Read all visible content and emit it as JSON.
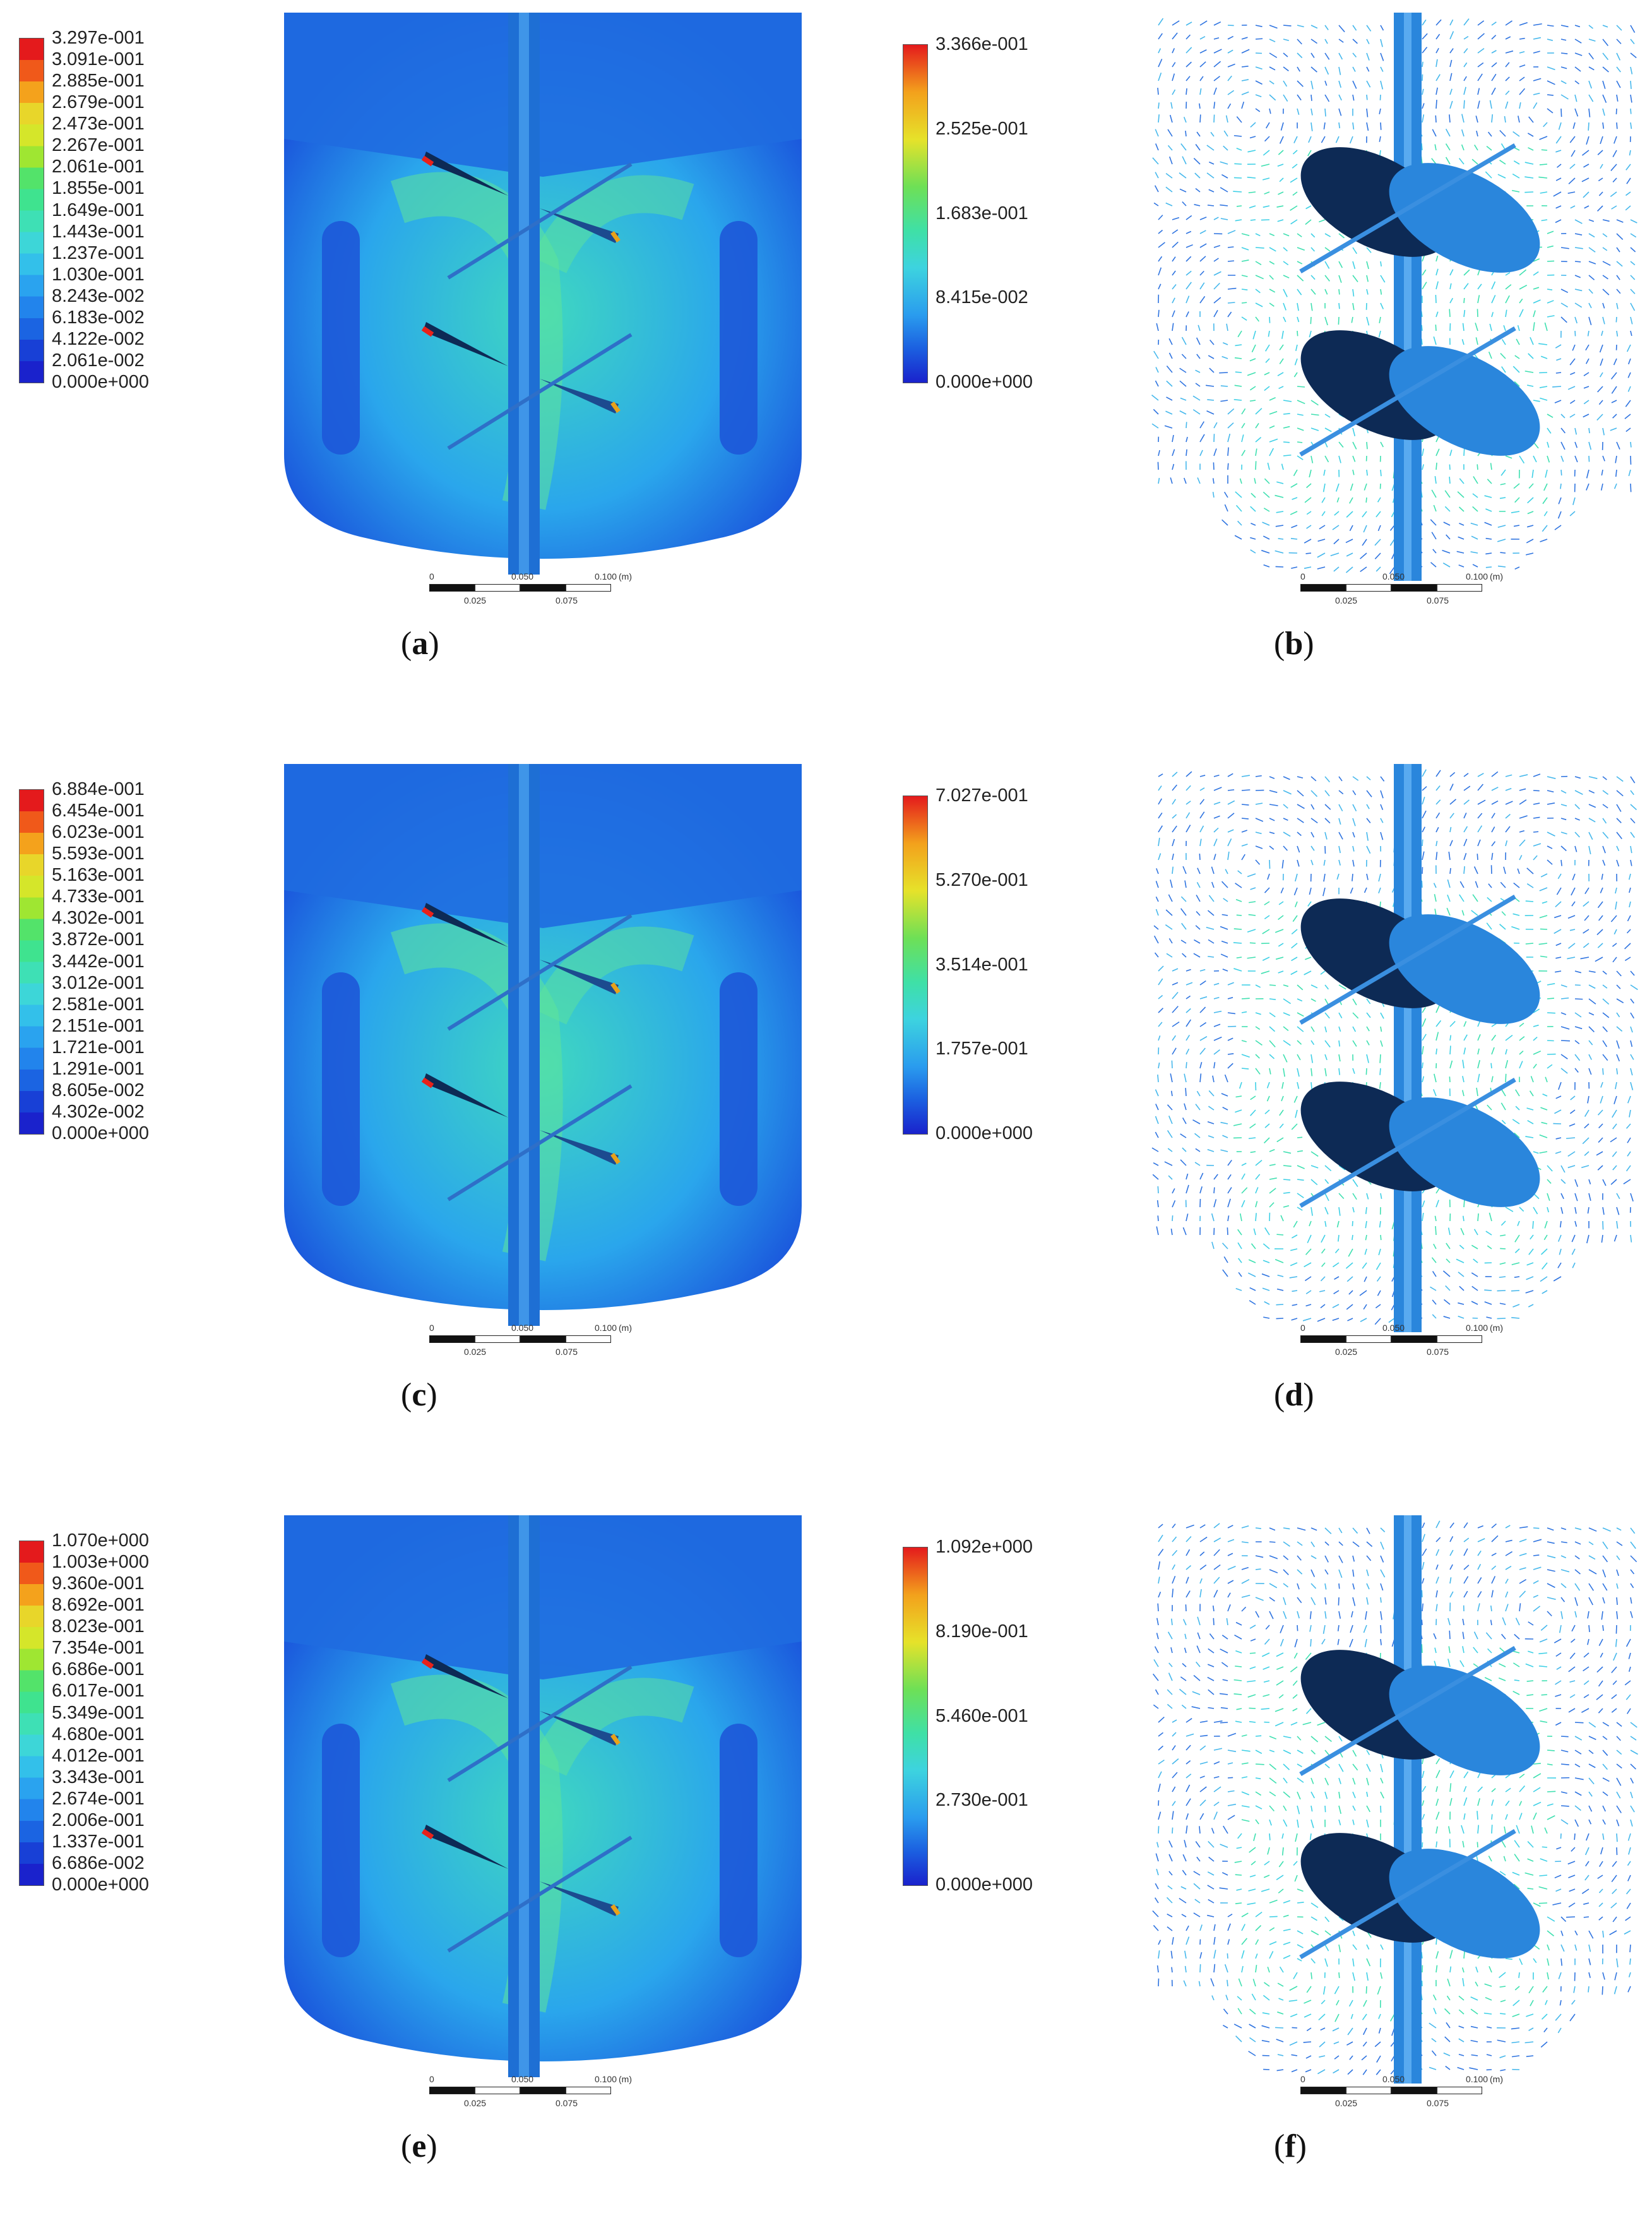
{
  "panels": [
    {
      "id": "a",
      "caption_open": "(",
      "caption_letter": "a",
      "caption_close": ")",
      "type": "contour",
      "legend": [
        "3.297e-001",
        "3.091e-001",
        "2.885e-001",
        "2.679e-001",
        "2.473e-001",
        "2.267e-001",
        "2.061e-001",
        "1.855e-001",
        "1.649e-001",
        "1.443e-001",
        "1.237e-001",
        "1.030e-001",
        "8.243e-002",
        "6.183e-002",
        "4.122e-002",
        "2.061e-002",
        "0.000e+000"
      ]
    },
    {
      "id": "b",
      "caption_open": "(",
      "caption_letter": "b",
      "caption_close": ")",
      "type": "vector",
      "legend": [
        "3.366e-001",
        "2.525e-001",
        "1.683e-001",
        "8.415e-002",
        "0.000e+000"
      ]
    },
    {
      "id": "c",
      "caption_open": "(",
      "caption_letter": "c",
      "caption_close": ")",
      "type": "contour",
      "legend": [
        "6.884e-001",
        "6.454e-001",
        "6.023e-001",
        "5.593e-001",
        "5.163e-001",
        "4.733e-001",
        "4.302e-001",
        "3.872e-001",
        "3.442e-001",
        "3.012e-001",
        "2.581e-001",
        "2.151e-001",
        "1.721e-001",
        "1.291e-001",
        "8.605e-002",
        "4.302e-002",
        "0.000e+000"
      ]
    },
    {
      "id": "d",
      "caption_open": "(",
      "caption_letter": "d",
      "caption_close": ")",
      "type": "vector",
      "legend": [
        "7.027e-001",
        "5.270e-001",
        "3.514e-001",
        "1.757e-001",
        "0.000e+000"
      ]
    },
    {
      "id": "e",
      "caption_open": "(",
      "caption_letter": "e",
      "caption_close": ")",
      "type": "contour",
      "legend": [
        "1.070e+000",
        "1.003e+000",
        "9.360e-001",
        "8.692e-001",
        "8.023e-001",
        "7.354e-001",
        "6.686e-001",
        "6.017e-001",
        "5.349e-001",
        "4.680e-001",
        "4.012e-001",
        "3.343e-001",
        "2.674e-001",
        "2.006e-001",
        "1.337e-001",
        "6.686e-002",
        "0.000e+000"
      ]
    },
    {
      "id": "f",
      "caption_open": "(",
      "caption_letter": "f",
      "caption_close": ")",
      "type": "vector",
      "legend": [
        "1.092e+000",
        "8.190e-001",
        "5.460e-001",
        "2.730e-001",
        "0.000e+000"
      ]
    }
  ],
  "scale_bar": {
    "top": [
      "0",
      "0.050",
      "0.100",
      "(m)"
    ],
    "bottom": [
      "0.025",
      "0.075"
    ]
  },
  "colors": {
    "cold": "#1a4fd8",
    "cyan": "#3fd0e6",
    "green": "#4fe08a",
    "yellow": "#e8e22a",
    "red": "#e8221a",
    "blade": "#0d2a55",
    "shaft": "#2a7ed6"
  }
}
